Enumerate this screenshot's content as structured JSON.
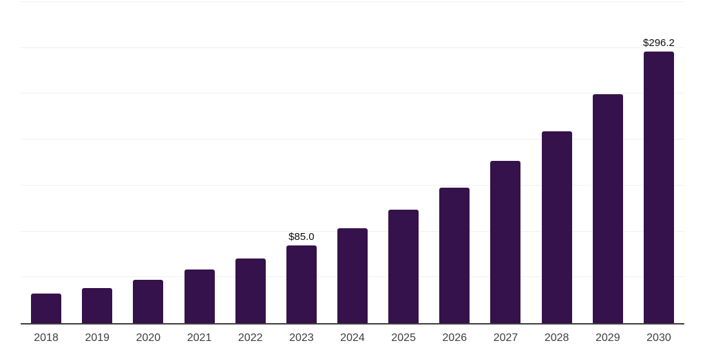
{
  "chart_data": {
    "type": "bar",
    "title": "",
    "xlabel": "",
    "ylabel": "",
    "categories": [
      "2018",
      "2019",
      "2020",
      "2021",
      "2022",
      "2023",
      "2024",
      "2025",
      "2026",
      "2027",
      "2028",
      "2029",
      "2030"
    ],
    "values": [
      31.9,
      38.0,
      47.3,
      58.2,
      70.1,
      85.0,
      103.1,
      123.9,
      147.4,
      176.6,
      209.3,
      249.7,
      296.2
    ],
    "value_labels": {
      "2023": "$85.0",
      "2030": "$296.2"
    },
    "ylim": [
      0,
      350
    ],
    "grid_step": 50,
    "grid": true,
    "legend": false,
    "y_tick_labels_visible": false
  },
  "colors": {
    "bar": "#35124B",
    "gridline": "#F0F0F0",
    "axis_line": "#3F3F3F",
    "tick_label": "#3D3D3D",
    "value_label": "#0D0D0D",
    "background": "#FFFFFF"
  }
}
